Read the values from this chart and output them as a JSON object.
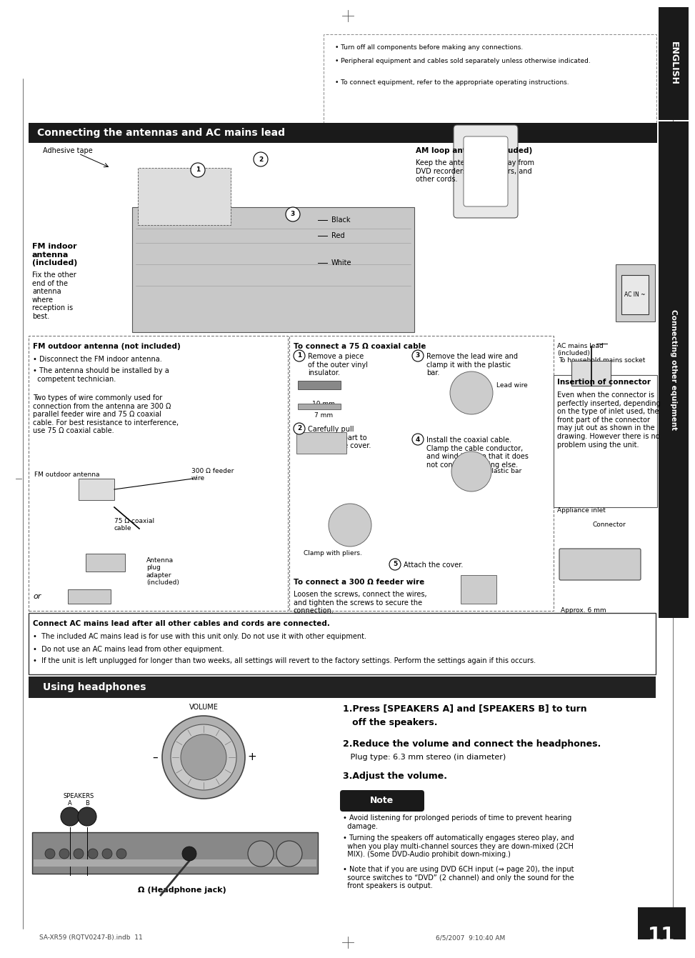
{
  "page_bg": "#ffffff",
  "section1_header": "Connecting the antennas and AC mains lead",
  "section1_header_bg": "#1a1a1a",
  "section1_header_color": "#ffffff",
  "section2_header": "Using headphones",
  "section2_header_bg": "#222222",
  "section2_header_color": "#ffffff",
  "caution_box_items": [
    "Turn off all components before making any connections.",
    "Peripheral equipment and cables sold separately unless otherwise indicated.",
    "To connect equipment, refer to the appropriate operating instructions."
  ],
  "adhesive_tape_label": "Adhesive tape",
  "am_antenna_label": "AM loop antenna (included)",
  "am_antenna_desc": "Keep the antenna cord away from\nDVD recorders, DVD players, and\nother cords.",
  "fm_antenna_label": "FM indoor\nantenna\n(included)",
  "fm_antenna_desc": "Fix the other\nend of the\nantenna\nwhere\nreception is\nbest.",
  "black_label": "Black",
  "red_label": "Red",
  "white_label": "White",
  "fm_outdoor_box_title": "FM outdoor antenna (not included)",
  "fm_outdoor_item1": "• Disconnect the FM indoor antenna.",
  "fm_outdoor_item2": "• The antenna should be installed by a\n  competent technician.",
  "fm_outdoor_desc": "Two types of wire commonly used for\nconnection from the antenna are 300 Ω\nparallel feeder wire and 75 Ω coaxial\ncable. For best resistance to interference,\nuse 75 Ω coaxial cable.",
  "fm_outdoor_ant_label": "FM outdoor antenna",
  "fm_feeder_label": "300 Ω feeder\nwire",
  "fm_coax_label": "75 Ω coaxial\ncable",
  "fm_adapter_label": "Antenna\nplug\nadapter\n(included)",
  "fm_or_label": "or",
  "coax_box_title": "To connect a 75 Ω coaxial cable",
  "coax_step1": "Remove a piece\nof the outer vinyl\ninsulator.",
  "coax_step2": "Carefully pull\nthe tabs apart to\nremove the cover.",
  "coax_step3": "Remove the lead wire and\nclamp it with the plastic\nbar.",
  "coax_step4": "Install the coaxial cable.\nClamp the cable conductor,\nand wind it on so that it does\nnot contact anything else.",
  "coax_step5": "Attach the cover.",
  "mm10_label": "10 mm",
  "mm7_label": "7 mm",
  "lead_wire_label": "Lead wire",
  "plastic_bar_label": "Plastic bar",
  "clamp_label": "Clamp with pliers.",
  "feeder_title": "To connect a 300 Ω feeder wire",
  "feeder_desc": "Loosen the screws, connect the wires,\nand tighten the screws to secure the\nconnection.",
  "ac_mains_label": "AC mains lead\n(included)",
  "ac_mains_socket": "To household mains socket",
  "insertion_title": "Insertion of connector",
  "insertion_desc": "Even when the connector is\nperfectly inserted, depending\non the type of inlet used, the\nfront part of the connector\nmay jut out as shown in the\ndrawing. However there is no\nproblem using the unit.",
  "appliance_label": "Appliance inlet",
  "connector_label": "Connector",
  "approx_label": "Approx. 6 mm",
  "warning_box_title": "Connect AC mains lead after all other cables and cords are connected.",
  "warning_box_item1": "The included AC mains lead is for use with this unit only. Do not use it with other equipment.",
  "warning_box_item2": "Do not use an AC mains lead from other equipment.",
  "warning_box_item3": "If the unit is left unplugged for longer than two weeks, all settings will revert to the factory settings. Perform the settings again if this occurs.",
  "hp_step1_bold": "1.Press [SPEAKERS A] and [SPEAKERS B] to turn",
  "hp_step1b_bold": "   off the speakers.",
  "hp_step2_bold": "2.Reduce the volume and connect the headphones.",
  "hp_step2_normal": "   Plug type: 6.3 mm stereo (in diameter)",
  "hp_step3_bold": "3.Adjust the volume.",
  "volume_label": "VOLUME",
  "minus_label": "–",
  "plus_label": "+",
  "speakers_a_label": "SPEAKERS\nA        B",
  "headphone_jack_label": "Ω (Headphone jack)",
  "note_label": "Note",
  "note_item1": "• Avoid listening for prolonged periods of time to prevent hearing\n  damage.",
  "note_item2": "• Turning the speakers off automatically engages stereo play, and\n  when you play multi-channel sources they are down-mixed (2CH\n  MIX). (Some DVD-Audio prohibit down-mixing.)",
  "note_item3": "• Note that if you are using DVD 6CH input (⇒ page 20), the input\n  source switches to “DVD” (2 channel) and only the sound for the\n  front speakers is output.",
  "right_tab_text": "Connecting other equipment",
  "right_tab_english": "ENGLISH",
  "page_number": "11",
  "page_number_label": "RQTV0247",
  "bottom_left": "SA-XR59 (RQTV0247-B).indb  11",
  "bottom_right": "6/5/2007  9:10:40 AM"
}
